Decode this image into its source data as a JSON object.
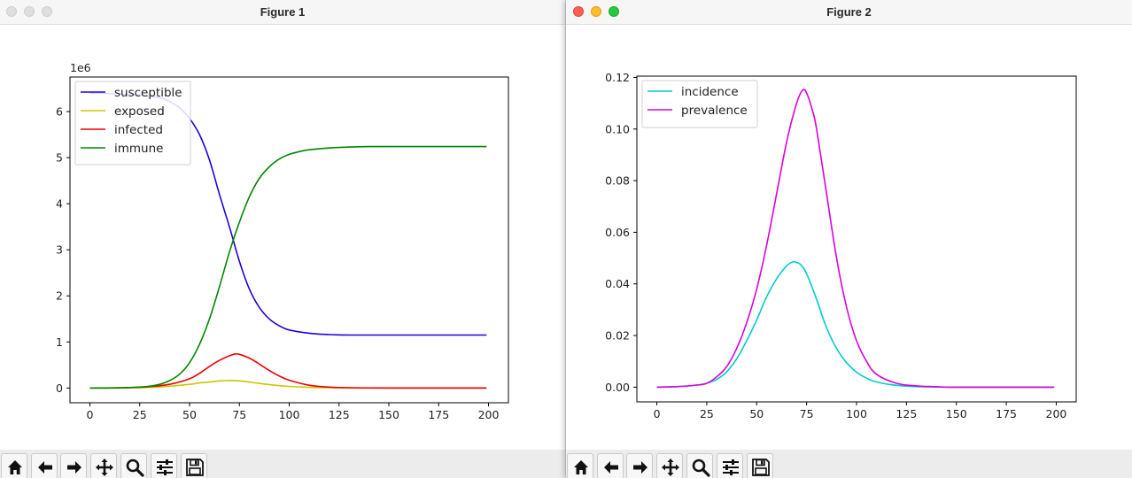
{
  "windows": [
    {
      "title": "Figure 1",
      "chart_data": {
        "type": "line",
        "title": "",
        "xlabel": "",
        "ylabel": "",
        "y_offset_label": "1e6",
        "xlim": [
          -10,
          210
        ],
        "ylim": [
          -0.32,
          6.75
        ],
        "x_ticks": [
          0,
          25,
          50,
          75,
          100,
          125,
          150,
          175,
          200
        ],
        "y_ticks": [
          0,
          1,
          2,
          3,
          4,
          5,
          6
        ],
        "grid": false,
        "legend_position": "upper-left",
        "series": [
          {
            "name": "susceptible",
            "color": "#2200dd",
            "x": [
              0,
              10,
              20,
              25,
              30,
              35,
              40,
              45,
              50,
              55,
              60,
              65,
              70,
              75,
              80,
              85,
              90,
              95,
              100,
              110,
              120,
              130,
              150,
              175,
              199
            ],
            "y": [
              6.4,
              6.39,
              6.37,
              6.36,
              6.33,
              6.3,
              6.22,
              6.08,
              5.85,
              5.5,
              4.95,
              4.2,
              3.5,
              2.75,
              2.15,
              1.75,
              1.5,
              1.35,
              1.26,
              1.19,
              1.16,
              1.15,
              1.15,
              1.15,
              1.15
            ]
          },
          {
            "name": "exposed",
            "color": "#c8c800",
            "x": [
              0,
              20,
              30,
              40,
              50,
              55,
              60,
              65,
              70,
              75,
              80,
              85,
              90,
              100,
              110,
              120,
              125,
              130,
              150,
              199
            ],
            "y": [
              0,
              0.005,
              0.015,
              0.04,
              0.08,
              0.11,
              0.13,
              0.155,
              0.165,
              0.155,
              0.13,
              0.1,
              0.075,
              0.035,
              0.015,
              0.006,
              0.004,
              0.002,
              0,
              0
            ]
          },
          {
            "name": "infected",
            "color": "#ee0000",
            "x": [
              0,
              20,
              30,
              40,
              50,
              55,
              60,
              65,
              70,
              73,
              75,
              80,
              85,
              90,
              95,
              100,
              110,
              120,
              130,
              150,
              199
            ],
            "y": [
              0,
              0.01,
              0.03,
              0.08,
              0.2,
              0.32,
              0.47,
              0.6,
              0.7,
              0.74,
              0.73,
              0.65,
              0.52,
              0.38,
              0.26,
              0.17,
              0.06,
              0.02,
              0.006,
              0,
              0
            ]
          },
          {
            "name": "immune",
            "color": "#008800",
            "x": [
              0,
              10,
              20,
              30,
              35,
              40,
              45,
              50,
              55,
              60,
              65,
              70,
              75,
              80,
              85,
              90,
              95,
              100,
              105,
              110,
              120,
              130,
              140,
              150,
              199
            ],
            "y": [
              0,
              0,
              0.01,
              0.04,
              0.08,
              0.16,
              0.3,
              0.55,
              0.95,
              1.5,
              2.2,
              2.95,
              3.6,
              4.15,
              4.55,
              4.8,
              4.97,
              5.07,
              5.13,
              5.17,
              5.21,
              5.23,
              5.24,
              5.24,
              5.24
            ]
          }
        ]
      }
    },
    {
      "title": "Figure 2",
      "chart_data": {
        "type": "line",
        "title": "",
        "xlabel": "",
        "ylabel": "",
        "xlim": [
          -10,
          210
        ],
        "ylim": [
          -0.0057,
          0.1205
        ],
        "x_ticks": [
          0,
          25,
          50,
          75,
          100,
          125,
          150,
          175,
          200
        ],
        "y_ticks": [
          "0.00",
          "0.02",
          "0.04",
          "0.06",
          "0.08",
          "0.10",
          "0.12"
        ],
        "grid": false,
        "legend_position": "upper-left",
        "series": [
          {
            "name": "incidence",
            "color": "#00cccc",
            "x": [
              0,
              10,
              20,
              25,
              30,
              35,
              40,
              45,
              50,
              55,
              60,
              65,
              68,
              70,
              72,
              75,
              80,
              85,
              90,
              95,
              100,
              105,
              110,
              120,
              130,
              150,
              199
            ],
            "y": [
              0,
              0.0002,
              0.0008,
              0.0015,
              0.003,
              0.006,
              0.011,
              0.018,
              0.026,
              0.035,
              0.042,
              0.047,
              0.0485,
              0.0483,
              0.0475,
              0.044,
              0.034,
              0.023,
              0.015,
              0.0095,
              0.0058,
              0.0035,
              0.002,
              0.0007,
              0.0002,
              0,
              0
            ]
          },
          {
            "name": "prevalence",
            "color": "#dd00dd",
            "x": [
              0,
              10,
              20,
              25,
              30,
              35,
              40,
              45,
              50,
              55,
              60,
              65,
              70,
              73,
              75,
              78,
              80,
              85,
              90,
              95,
              100,
              105,
              110,
              120,
              130,
              140,
              150,
              199
            ],
            "y": [
              0,
              0.0002,
              0.0008,
              0.0015,
              0.004,
              0.008,
              0.015,
              0.025,
              0.038,
              0.055,
              0.075,
              0.095,
              0.11,
              0.115,
              0.114,
              0.107,
              0.1,
              0.075,
              0.05,
              0.031,
              0.018,
              0.01,
              0.005,
              0.0015,
              0.0005,
              0.0002,
              0,
              0
            ]
          }
        ]
      }
    }
  ],
  "toolbar_icons": [
    "home-icon",
    "back-arrow-icon",
    "forward-arrow-icon",
    "pan-icon",
    "zoom-icon",
    "configure-subplots-icon",
    "save-icon"
  ]
}
